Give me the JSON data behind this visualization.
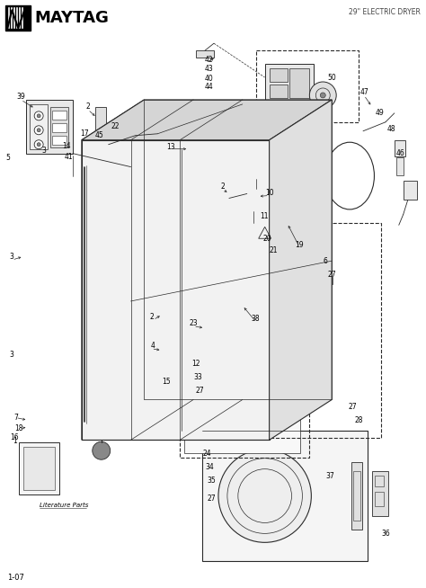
{
  "title": "29\" ELECTRIC DRYER",
  "brand": "MAYTAG",
  "footer": "1-07",
  "bg_color": "#ffffff",
  "line_color": "#2a2a2a",
  "fig_width": 4.74,
  "fig_height": 6.54,
  "dpi": 100
}
